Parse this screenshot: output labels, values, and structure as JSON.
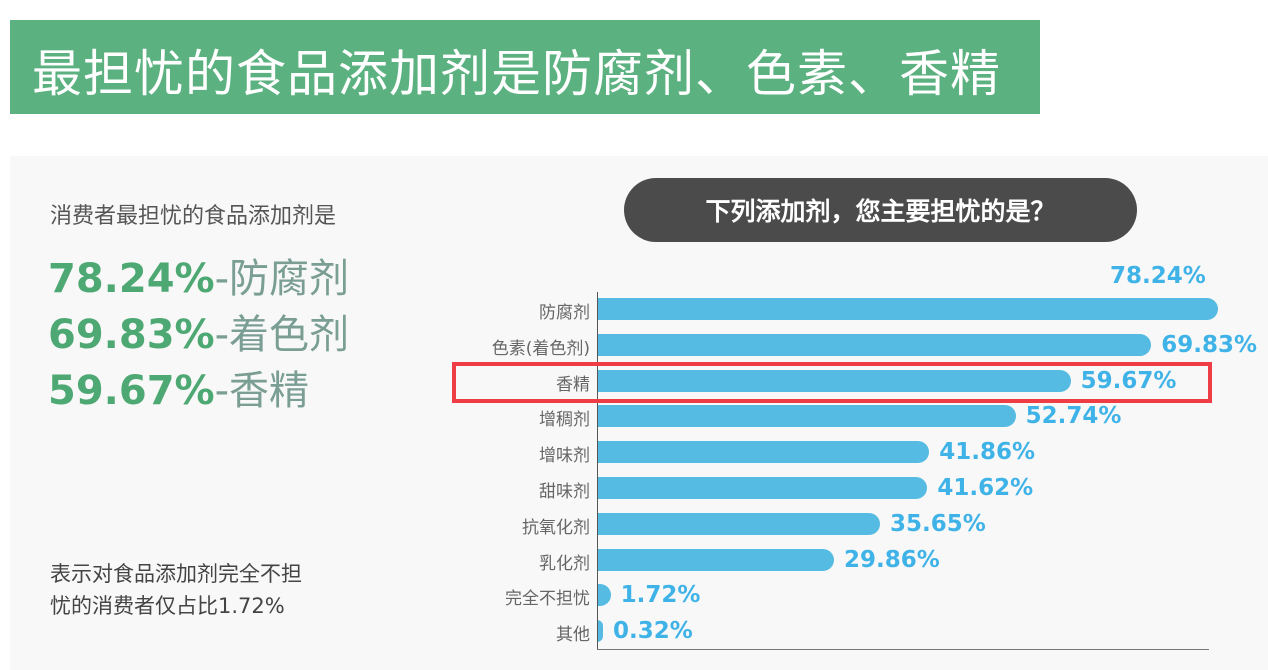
{
  "title": "最担忧的食品添加剂是防腐剂、色素、香精",
  "left": {
    "subtitle": "消费者最担忧的食品添加剂是",
    "highlights": [
      {
        "value": "78.24%",
        "label": "-防腐剂"
      },
      {
        "value": "69.83%",
        "label": "-着色剂"
      },
      {
        "value": "59.67%",
        "label": "-香精"
      }
    ],
    "note_line1": "表示对食品添加剂完全不担",
    "note_line2": "忧的消费者仅占比1.72%"
  },
  "chart_data": {
    "type": "bar",
    "orientation": "horizontal",
    "title": "下列添加剂，您主要担忧的是？",
    "categories": [
      "防腐剂",
      "色素(着色剂)",
      "香精",
      "增稠剂",
      "增味剂",
      "甜味剂",
      "抗氧化剂",
      "乳化剂",
      "完全不担忧",
      "其他"
    ],
    "values": [
      78.24,
      69.83,
      59.67,
      52.74,
      41.86,
      41.62,
      35.65,
      29.86,
      1.72,
      0.32
    ],
    "labels": [
      "78.24%",
      "69.83%",
      "59.67%",
      "52.74%",
      "41.86%",
      "41.62%",
      "35.65%",
      "29.86%",
      "1.72%",
      "0.32%"
    ],
    "highlighted_category": "香精",
    "bar_color": "#55bbe2",
    "highlight_color": "#ee3d45",
    "xlim": [
      0,
      78.24
    ]
  }
}
